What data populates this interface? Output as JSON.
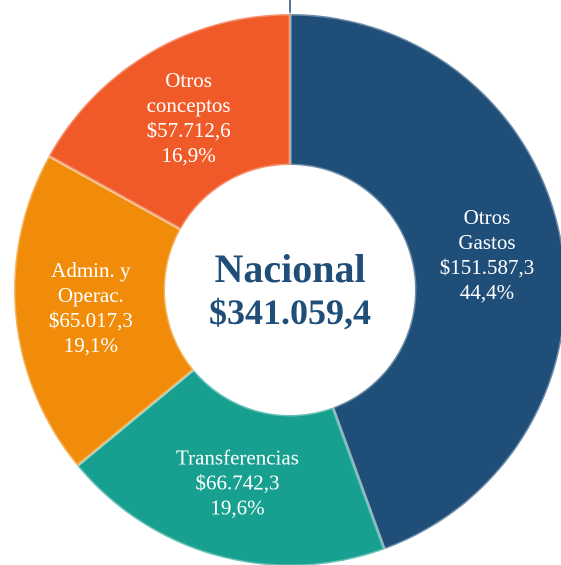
{
  "chart_data": {
    "type": "donut",
    "center_title": "Nacional",
    "center_value_label": "$341.059,4",
    "categories": [
      "Otros Gastos",
      "Transferencias",
      "Admin. y Operac.",
      "Otros conceptos"
    ],
    "values": [
      151587.3,
      66742.3,
      65017.3,
      57712.6
    ],
    "value_labels": [
      "$151.587,3",
      "$66.742,3",
      "$65.017,3",
      "$57.712,6"
    ],
    "percentages": [
      44.4,
      19.6,
      19.1,
      16.9
    ],
    "percentage_labels": [
      "44,4%",
      "19,6%",
      "19,1%",
      "16,9%"
    ],
    "colors": [
      "#1f4e79",
      "#17a08f",
      "#f08c0a",
      "#f05a28"
    ]
  }
}
